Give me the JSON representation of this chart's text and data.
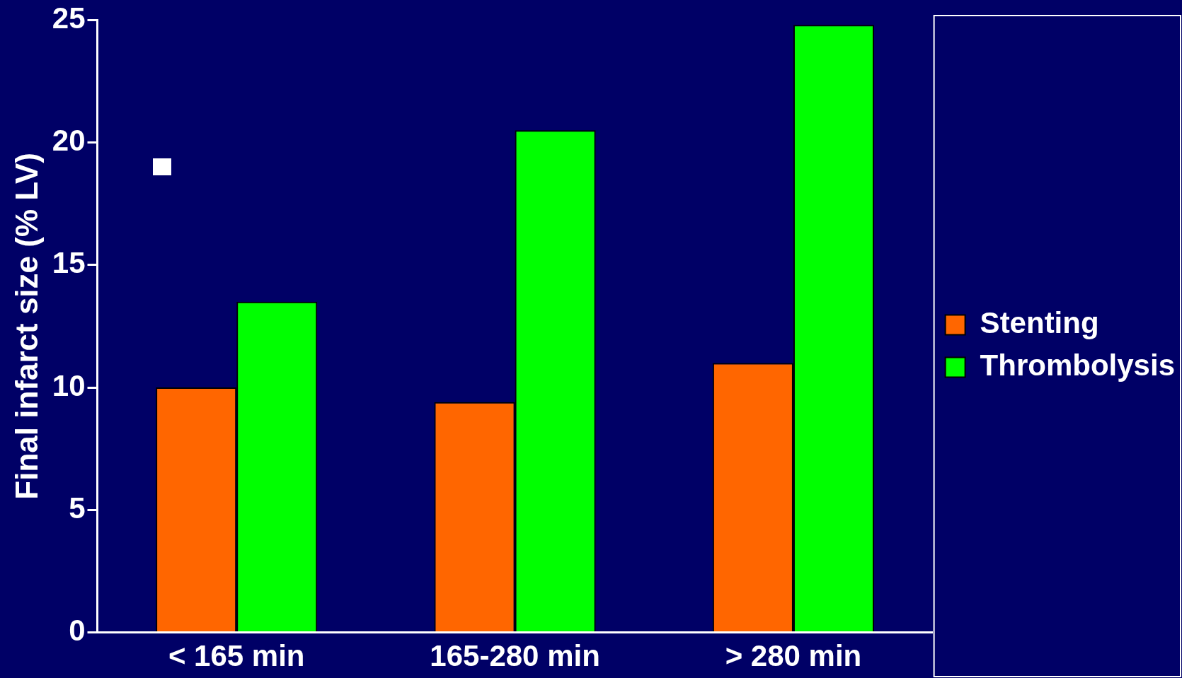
{
  "chart_data": {
    "type": "bar",
    "ylabel": "Final infarct size (% LV)",
    "categories": [
      "< 165 min",
      "165-280 min",
      "> 280 min"
    ],
    "series": [
      {
        "name": "Stenting",
        "color": "#ff6600",
        "values": [
          10,
          9.4,
          11
        ]
      },
      {
        "name": "Thrombolysis",
        "color": "#00ff00",
        "values": [
          13.5,
          20.5,
          24.8
        ]
      }
    ],
    "ylim": [
      0,
      25
    ],
    "yticks": [
      0,
      5,
      10,
      15,
      20,
      25
    ],
    "grid": false,
    "legend": "right"
  }
}
